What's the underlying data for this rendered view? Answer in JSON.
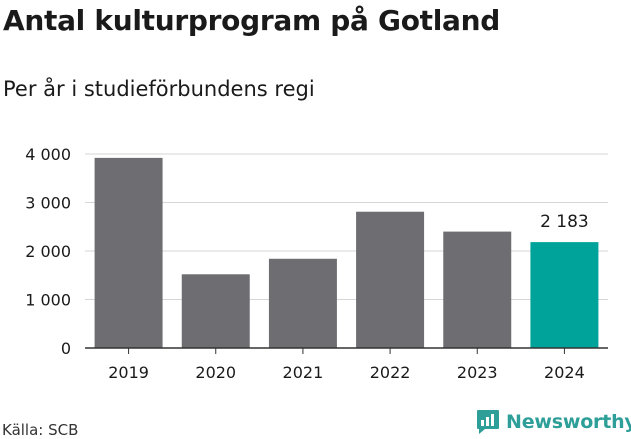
{
  "title": "Antal kulturprogram på Gotland",
  "subtitle": "Per år i studieförbundens regi",
  "source": "Källa: SCB",
  "brand": "Newsworthy",
  "colors": {
    "bar_default": "#6e6d72",
    "bar_highlight": "#00a39a",
    "grid": "#d6d6d6",
    "axis": "#333333",
    "brand": "#2d9e98"
  },
  "chart_data": {
    "type": "bar",
    "categories": [
      "2019",
      "2020",
      "2021",
      "2022",
      "2023",
      "2024"
    ],
    "values": [
      3920,
      1520,
      1840,
      2810,
      2400,
      2183
    ],
    "highlight_index": 5,
    "data_labels": [
      {
        "index": 5,
        "text": "2 183"
      }
    ],
    "ylim": [
      0,
      4000
    ],
    "yticks": [
      0,
      1000,
      2000,
      3000,
      4000
    ],
    "ytick_labels": [
      "0",
      "1 000",
      "2 000",
      "3 000",
      "4 000"
    ],
    "grid": true,
    "xlabel": "",
    "ylabel": ""
  }
}
